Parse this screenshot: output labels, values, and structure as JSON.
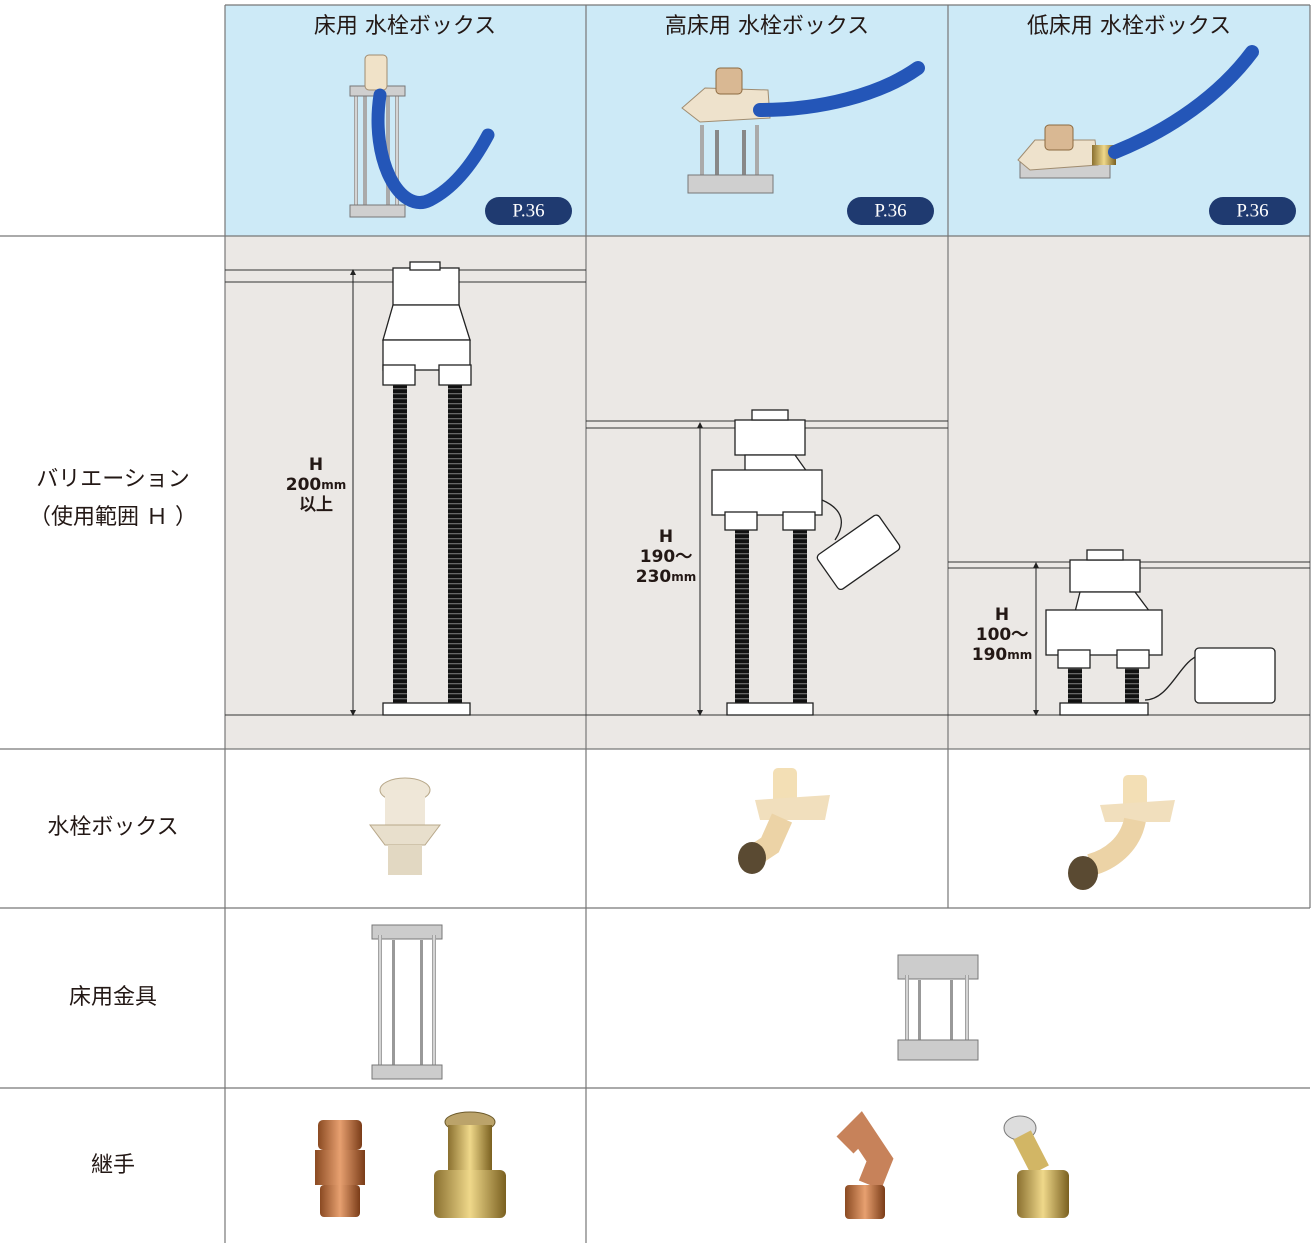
{
  "header": {
    "columns": [
      {
        "title": "床用 水栓ボックス",
        "page_ref": "P.36"
      },
      {
        "title": "高床用 水栓ボックス",
        "page_ref": "P.36"
      },
      {
        "title": "低床用 水栓ボックス",
        "page_ref": "P.36"
      }
    ]
  },
  "rows": [
    {
      "label": [
        "バリエーション",
        "（使用範囲 Ｈ ）"
      ],
      "diagrams": [
        {
          "lines": [
            {
              "text": "H"
            },
            {
              "text": "200",
              "unit": "mm"
            },
            {
              "text": "以上"
            }
          ]
        },
        {
          "lines": [
            {
              "text": "H"
            },
            {
              "text": "190～"
            },
            {
              "text": "230",
              "unit": "mm"
            }
          ]
        },
        {
          "lines": [
            {
              "text": "H"
            },
            {
              "text": "100～"
            },
            {
              "text": "190",
              "unit": "mm"
            }
          ]
        }
      ]
    },
    {
      "label": [
        "水栓ボックス"
      ]
    },
    {
      "label": [
        "床用金具"
      ]
    },
    {
      "label": [
        "継手"
      ]
    }
  ]
}
